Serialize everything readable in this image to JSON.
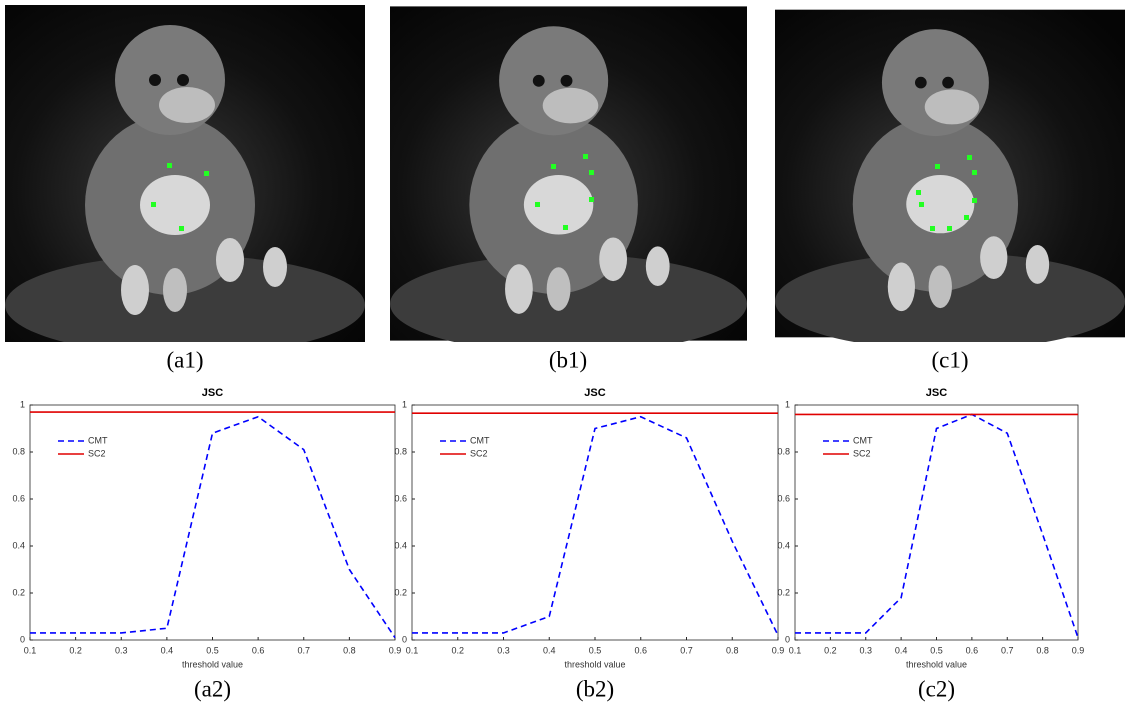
{
  "images": [
    {
      "caption": "(a1)"
    },
    {
      "caption": "(b1)"
    },
    {
      "caption": "(c1)"
    }
  ],
  "chart_data": [
    {
      "type": "line",
      "title": "JSC",
      "xlabel": "threshold value",
      "caption": "(a2)",
      "x": [
        0.1,
        0.2,
        0.3,
        0.4,
        0.5,
        0.6,
        0.7,
        0.8,
        0.9
      ],
      "series": [
        {
          "name": "CMT",
          "color": "#0000ff",
          "dash": true,
          "values": [
            0.03,
            0.03,
            0.03,
            0.05,
            0.88,
            0.95,
            0.81,
            0.3,
            0.01
          ]
        },
        {
          "name": "SC2",
          "color": "#e00000",
          "dash": false,
          "values": [
            0.97,
            0.97,
            0.97,
            0.97,
            0.97,
            0.97,
            0.97,
            0.97,
            0.97
          ]
        }
      ],
      "xlim": [
        0.1,
        0.9
      ],
      "ylim": [
        0,
        1
      ],
      "xticks": [
        0.1,
        0.2,
        0.3,
        0.4,
        0.5,
        0.6,
        0.7,
        0.8,
        0.9
      ],
      "yticks": [
        0,
        0.2,
        0.4,
        0.6,
        0.8,
        1
      ],
      "legend": "upper left"
    },
    {
      "type": "line",
      "title": "JSC",
      "xlabel": "threshold value",
      "caption": "(b2)",
      "x": [
        0.1,
        0.2,
        0.3,
        0.4,
        0.5,
        0.6,
        0.7,
        0.8,
        0.9
      ],
      "series": [
        {
          "name": "CMT",
          "color": "#0000ff",
          "dash": true,
          "values": [
            0.03,
            0.03,
            0.03,
            0.1,
            0.9,
            0.95,
            0.86,
            0.42,
            0.02
          ]
        },
        {
          "name": "SC2",
          "color": "#e00000",
          "dash": false,
          "values": [
            0.965,
            0.965,
            0.965,
            0.965,
            0.965,
            0.965,
            0.965,
            0.965,
            0.965
          ]
        }
      ],
      "xlim": [
        0.1,
        0.9
      ],
      "ylim": [
        0,
        1
      ],
      "xticks": [
        0.1,
        0.2,
        0.3,
        0.4,
        0.5,
        0.6,
        0.7,
        0.8,
        0.9
      ],
      "yticks": [
        0,
        0.2,
        0.4,
        0.6,
        0.8,
        1
      ],
      "legend": "upper left"
    },
    {
      "type": "line",
      "title": "JSC",
      "xlabel": "threshold value",
      "caption": "(c2)",
      "x": [
        0.1,
        0.2,
        0.3,
        0.4,
        0.5,
        0.6,
        0.7,
        0.8,
        0.9
      ],
      "series": [
        {
          "name": "CMT",
          "color": "#0000ff",
          "dash": true,
          "values": [
            0.03,
            0.03,
            0.03,
            0.18,
            0.9,
            0.96,
            0.88,
            0.45,
            0.01
          ]
        },
        {
          "name": "SC2",
          "color": "#e00000",
          "dash": false,
          "values": [
            0.96,
            0.96,
            0.96,
            0.96,
            0.96,
            0.96,
            0.96,
            0.96,
            0.96
          ]
        }
      ],
      "xlim": [
        0.1,
        0.9
      ],
      "ylim": [
        0,
        1
      ],
      "xticks": [
        0.1,
        0.2,
        0.3,
        0.4,
        0.5,
        0.6,
        0.7,
        0.8,
        0.9
      ],
      "yticks": [
        0,
        0.2,
        0.4,
        0.6,
        0.8,
        1
      ],
      "legend": "upper left"
    }
  ]
}
